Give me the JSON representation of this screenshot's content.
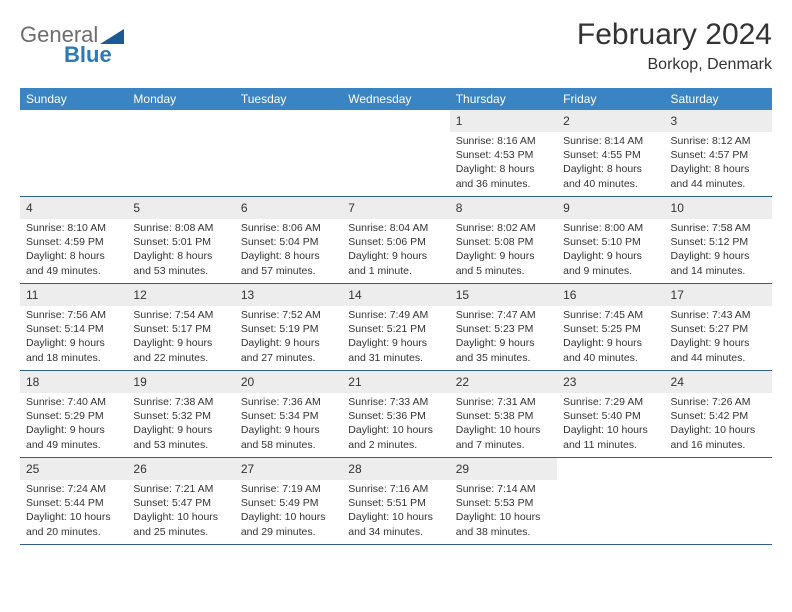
{
  "logo": {
    "part1": "General",
    "part2": "Blue"
  },
  "title": "February 2024",
  "location": "Borkop, Denmark",
  "colors": {
    "header_bar": "#3b84c4",
    "day_bar": "#ededed",
    "row_divider": "#2f5f8a",
    "logo_gray": "#6d6d6d",
    "logo_blue": "#2a7ab9",
    "logo_shape": "#1d5a94",
    "text": "#333333",
    "bg": "#ffffff"
  },
  "typography": {
    "title_fontsize": 30,
    "location_fontsize": 16,
    "dow_fontsize": 12,
    "daynum_fontsize": 12,
    "body_fontsize": 10.5,
    "logo_fontsize": 22
  },
  "dow": [
    "Sunday",
    "Monday",
    "Tuesday",
    "Wednesday",
    "Thursday",
    "Friday",
    "Saturday"
  ],
  "weeks": [
    [
      null,
      null,
      null,
      null,
      {
        "n": "1",
        "sunrise": "Sunrise: 8:16 AM",
        "sunset": "Sunset: 4:53 PM",
        "day1": "Daylight: 8 hours",
        "day2": "and 36 minutes."
      },
      {
        "n": "2",
        "sunrise": "Sunrise: 8:14 AM",
        "sunset": "Sunset: 4:55 PM",
        "day1": "Daylight: 8 hours",
        "day2": "and 40 minutes."
      },
      {
        "n": "3",
        "sunrise": "Sunrise: 8:12 AM",
        "sunset": "Sunset: 4:57 PM",
        "day1": "Daylight: 8 hours",
        "day2": "and 44 minutes."
      }
    ],
    [
      {
        "n": "4",
        "sunrise": "Sunrise: 8:10 AM",
        "sunset": "Sunset: 4:59 PM",
        "day1": "Daylight: 8 hours",
        "day2": "and 49 minutes."
      },
      {
        "n": "5",
        "sunrise": "Sunrise: 8:08 AM",
        "sunset": "Sunset: 5:01 PM",
        "day1": "Daylight: 8 hours",
        "day2": "and 53 minutes."
      },
      {
        "n": "6",
        "sunrise": "Sunrise: 8:06 AM",
        "sunset": "Sunset: 5:04 PM",
        "day1": "Daylight: 8 hours",
        "day2": "and 57 minutes."
      },
      {
        "n": "7",
        "sunrise": "Sunrise: 8:04 AM",
        "sunset": "Sunset: 5:06 PM",
        "day1": "Daylight: 9 hours",
        "day2": "and 1 minute."
      },
      {
        "n": "8",
        "sunrise": "Sunrise: 8:02 AM",
        "sunset": "Sunset: 5:08 PM",
        "day1": "Daylight: 9 hours",
        "day2": "and 5 minutes."
      },
      {
        "n": "9",
        "sunrise": "Sunrise: 8:00 AM",
        "sunset": "Sunset: 5:10 PM",
        "day1": "Daylight: 9 hours",
        "day2": "and 9 minutes."
      },
      {
        "n": "10",
        "sunrise": "Sunrise: 7:58 AM",
        "sunset": "Sunset: 5:12 PM",
        "day1": "Daylight: 9 hours",
        "day2": "and 14 minutes."
      }
    ],
    [
      {
        "n": "11",
        "sunrise": "Sunrise: 7:56 AM",
        "sunset": "Sunset: 5:14 PM",
        "day1": "Daylight: 9 hours",
        "day2": "and 18 minutes."
      },
      {
        "n": "12",
        "sunrise": "Sunrise: 7:54 AM",
        "sunset": "Sunset: 5:17 PM",
        "day1": "Daylight: 9 hours",
        "day2": "and 22 minutes."
      },
      {
        "n": "13",
        "sunrise": "Sunrise: 7:52 AM",
        "sunset": "Sunset: 5:19 PM",
        "day1": "Daylight: 9 hours",
        "day2": "and 27 minutes."
      },
      {
        "n": "14",
        "sunrise": "Sunrise: 7:49 AM",
        "sunset": "Sunset: 5:21 PM",
        "day1": "Daylight: 9 hours",
        "day2": "and 31 minutes."
      },
      {
        "n": "15",
        "sunrise": "Sunrise: 7:47 AM",
        "sunset": "Sunset: 5:23 PM",
        "day1": "Daylight: 9 hours",
        "day2": "and 35 minutes."
      },
      {
        "n": "16",
        "sunrise": "Sunrise: 7:45 AM",
        "sunset": "Sunset: 5:25 PM",
        "day1": "Daylight: 9 hours",
        "day2": "and 40 minutes."
      },
      {
        "n": "17",
        "sunrise": "Sunrise: 7:43 AM",
        "sunset": "Sunset: 5:27 PM",
        "day1": "Daylight: 9 hours",
        "day2": "and 44 minutes."
      }
    ],
    [
      {
        "n": "18",
        "sunrise": "Sunrise: 7:40 AM",
        "sunset": "Sunset: 5:29 PM",
        "day1": "Daylight: 9 hours",
        "day2": "and 49 minutes."
      },
      {
        "n": "19",
        "sunrise": "Sunrise: 7:38 AM",
        "sunset": "Sunset: 5:32 PM",
        "day1": "Daylight: 9 hours",
        "day2": "and 53 minutes."
      },
      {
        "n": "20",
        "sunrise": "Sunrise: 7:36 AM",
        "sunset": "Sunset: 5:34 PM",
        "day1": "Daylight: 9 hours",
        "day2": "and 58 minutes."
      },
      {
        "n": "21",
        "sunrise": "Sunrise: 7:33 AM",
        "sunset": "Sunset: 5:36 PM",
        "day1": "Daylight: 10 hours",
        "day2": "and 2 minutes."
      },
      {
        "n": "22",
        "sunrise": "Sunrise: 7:31 AM",
        "sunset": "Sunset: 5:38 PM",
        "day1": "Daylight: 10 hours",
        "day2": "and 7 minutes."
      },
      {
        "n": "23",
        "sunrise": "Sunrise: 7:29 AM",
        "sunset": "Sunset: 5:40 PM",
        "day1": "Daylight: 10 hours",
        "day2": "and 11 minutes."
      },
      {
        "n": "24",
        "sunrise": "Sunrise: 7:26 AM",
        "sunset": "Sunset: 5:42 PM",
        "day1": "Daylight: 10 hours",
        "day2": "and 16 minutes."
      }
    ],
    [
      {
        "n": "25",
        "sunrise": "Sunrise: 7:24 AM",
        "sunset": "Sunset: 5:44 PM",
        "day1": "Daylight: 10 hours",
        "day2": "and 20 minutes."
      },
      {
        "n": "26",
        "sunrise": "Sunrise: 7:21 AM",
        "sunset": "Sunset: 5:47 PM",
        "day1": "Daylight: 10 hours",
        "day2": "and 25 minutes."
      },
      {
        "n": "27",
        "sunrise": "Sunrise: 7:19 AM",
        "sunset": "Sunset: 5:49 PM",
        "day1": "Daylight: 10 hours",
        "day2": "and 29 minutes."
      },
      {
        "n": "28",
        "sunrise": "Sunrise: 7:16 AM",
        "sunset": "Sunset: 5:51 PM",
        "day1": "Daylight: 10 hours",
        "day2": "and 34 minutes."
      },
      {
        "n": "29",
        "sunrise": "Sunrise: 7:14 AM",
        "sunset": "Sunset: 5:53 PM",
        "day1": "Daylight: 10 hours",
        "day2": "and 38 minutes."
      },
      null,
      null
    ]
  ]
}
